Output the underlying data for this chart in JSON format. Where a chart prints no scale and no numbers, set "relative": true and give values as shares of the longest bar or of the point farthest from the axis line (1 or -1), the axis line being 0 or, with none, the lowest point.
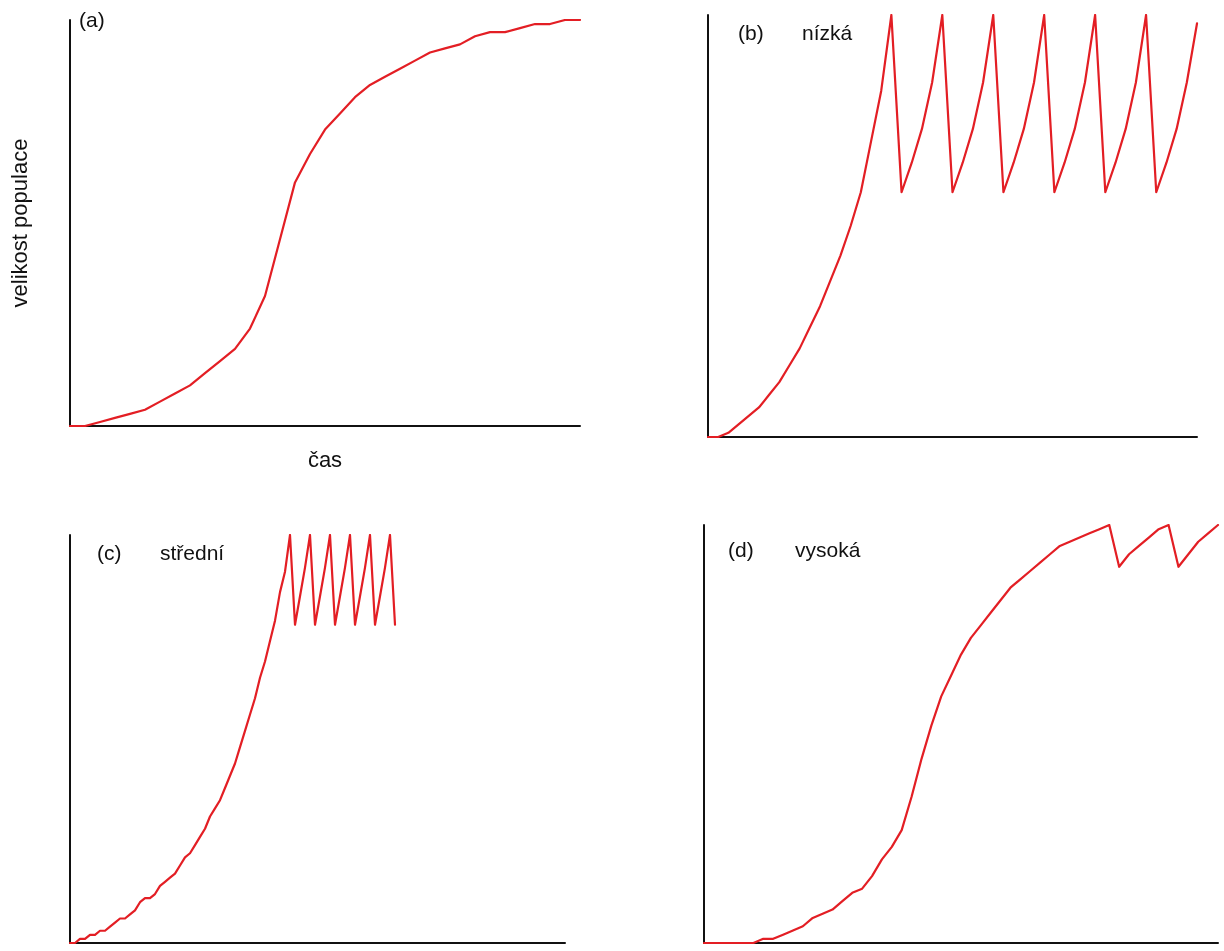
{
  "chart_data": [
    {
      "type": "line",
      "title": "(a)",
      "xlabel": "čas",
      "ylabel": "velikost populace",
      "relative": true,
      "color": "#e31e24",
      "marker": "none",
      "line_style": "solid",
      "categories": [
        null,
        null,
        null,
        null,
        null,
        null,
        null,
        null,
        null,
        null,
        null,
        null,
        null,
        null,
        null,
        null,
        null,
        null,
        null,
        null,
        null,
        null,
        null,
        null,
        null,
        null,
        null,
        null,
        null,
        null,
        null,
        null,
        null,
        null,
        null
      ],
      "values": [
        0,
        0,
        0.01,
        0.02,
        0.03,
        0.04,
        0.06,
        0.08,
        0.1,
        0.13,
        0.16,
        0.19,
        0.24,
        0.32,
        0.46,
        0.6,
        0.67,
        0.73,
        0.77,
        0.81,
        0.84,
        0.86,
        0.88,
        0.9,
        0.92,
        0.93,
        0.94,
        0.96,
        0.97,
        0.97,
        0.98,
        0.99,
        0.99,
        1.0,
        1.0
      ]
    },
    {
      "type": "line",
      "title": "(b)",
      "subtitle": "nízká",
      "relative": true,
      "color": "#e31e24",
      "marker": "none",
      "line_style": "solid",
      "categories": [
        null,
        null,
        null,
        null,
        null,
        null,
        null,
        null,
        null,
        null,
        null,
        null,
        null,
        null,
        null,
        null,
        null,
        null,
        null,
        null,
        null,
        null,
        null,
        null,
        null,
        null,
        null,
        null,
        null,
        null,
        null,
        null,
        null,
        null,
        null,
        null,
        null,
        null,
        null,
        null,
        null,
        null,
        null,
        null,
        null,
        null,
        null,
        null,
        null
      ],
      "values": [
        0,
        0,
        0.01,
        0.03,
        0.05,
        0.07,
        0.1,
        0.13,
        0.17,
        0.21,
        0.26,
        0.31,
        0.37,
        0.43,
        0.5,
        0.58,
        0.7,
        0.82,
        1.0,
        0.58,
        0.65,
        0.73,
        0.84,
        1.0,
        0.58,
        0.65,
        0.73,
        0.84,
        1.0,
        0.58,
        0.65,
        0.73,
        0.84,
        1.0,
        0.58,
        0.65,
        0.73,
        0.84,
        1.0,
        0.58,
        0.65,
        0.73,
        0.84,
        1.0,
        0.58,
        0.65,
        0.73,
        0.84,
        0.98
      ]
    },
    {
      "type": "line",
      "title": "(c)",
      "subtitle": "střední",
      "relative": true,
      "color": "#e31e24",
      "marker": "none",
      "line_style": "solid",
      "categories": [
        null,
        null,
        null,
        null,
        null,
        null,
        null,
        null,
        null,
        null,
        null,
        null,
        null,
        null,
        null,
        null,
        null,
        null,
        null,
        null,
        null,
        null,
        null,
        null,
        null,
        null,
        null,
        null,
        null,
        null,
        null,
        null,
        null,
        null,
        null,
        null,
        null,
        null,
        null,
        null,
        null,
        null,
        null,
        null,
        null,
        null,
        null,
        null,
        null,
        null,
        null,
        null,
        null,
        null,
        null,
        null,
        null,
        null,
        null,
        null,
        null,
        null,
        null,
        null,
        null,
        null,
        null,
        null,
        null,
        null,
        null,
        null,
        null,
        null,
        null,
        null,
        null,
        null,
        null,
        null,
        null,
        null,
        null,
        null,
        null,
        null,
        null,
        null,
        null,
        null,
        null,
        null,
        null,
        null,
        null,
        null,
        null,
        null,
        null,
        null
      ],
      "values": [
        0,
        0,
        0.01,
        0.01,
        0.02,
        0.02,
        0.03,
        0.03,
        0.04,
        0.05,
        0.06,
        0.06,
        0.07,
        0.08,
        0.1,
        0.11,
        0.11,
        0.12,
        0.14,
        0.15,
        0.16,
        0.17,
        0.19,
        0.21,
        0.22,
        0.24,
        0.26,
        0.28,
        0.31,
        0.33,
        0.35,
        0.38,
        0.41,
        0.44,
        0.48,
        0.52,
        0.56,
        0.6,
        0.65,
        0.69,
        0.74,
        0.79,
        0.86,
        0.91,
        1.0,
        0.78,
        0.85,
        0.92,
        1.0,
        0.78,
        0.85,
        0.92,
        1.0,
        0.78,
        0.85,
        0.92,
        1.0,
        0.78,
        0.85,
        0.92,
        1.0,
        0.78,
        0.85,
        0.92,
        1.0,
        0.78,
        null,
        null,
        null,
        null,
        null,
        null,
        null,
        null,
        null,
        null,
        null,
        null,
        null,
        null,
        null,
        null,
        null,
        null,
        null,
        null,
        null,
        null,
        null,
        null,
        null,
        null,
        null,
        null,
        null,
        null,
        null,
        null,
        null,
        null
      ]
    },
    {
      "type": "line",
      "title": "(d)",
      "subtitle": "vysoká",
      "relative": true,
      "color": "#e31e24",
      "marker": "none",
      "line_style": "solid",
      "categories": [
        null,
        null,
        null,
        null,
        null,
        null,
        null,
        null,
        null,
        null,
        null,
        null,
        null,
        null,
        null,
        null,
        null,
        null,
        null,
        null,
        null,
        null,
        null,
        null,
        null,
        null,
        null,
        null,
        null,
        null,
        null,
        null,
        null,
        null,
        null,
        null,
        null,
        null,
        null,
        null,
        null,
        null,
        null,
        null,
        null,
        null,
        null,
        null,
        null,
        null,
        null,
        null,
        null
      ],
      "values": [
        0,
        0,
        0,
        0,
        0,
        0,
        0.01,
        0.01,
        0.02,
        0.03,
        0.04,
        0.06,
        0.07,
        0.08,
        0.1,
        0.12,
        0.13,
        0.16,
        0.2,
        0.23,
        0.27,
        0.35,
        0.44,
        0.52,
        0.59,
        0.64,
        0.69,
        0.73,
        0.76,
        0.79,
        0.82,
        0.85,
        0.87,
        0.89,
        0.91,
        0.93,
        0.95,
        0.96,
        0.97,
        0.98,
        0.99,
        1.0,
        0.9,
        0.93,
        0.95,
        0.97,
        0.99,
        1.0,
        0.9,
        0.93,
        0.96,
        0.98,
        1.0
      ]
    }
  ]
}
